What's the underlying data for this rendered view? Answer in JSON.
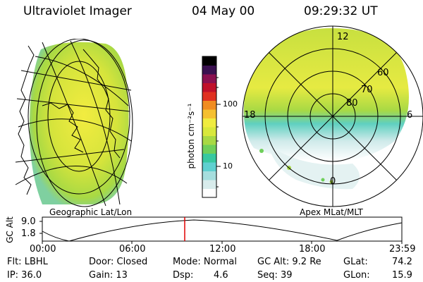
{
  "header": {
    "instrument": "Ultraviolet Imager",
    "date": "04 May 00",
    "time": "09:29:32 UT"
  },
  "geo_panel": {
    "caption": "Geographic Lat/Lon"
  },
  "apex_panel": {
    "caption": "Apex MLat/MLT",
    "mlt_labels": {
      "top": "12",
      "left": "18",
      "right": "6",
      "bottom": "0"
    },
    "lat_labels": [
      "60",
      "70",
      "80"
    ]
  },
  "colorbar": {
    "unit_label": "photon cm⁻²s⁻¹",
    "ticks": [
      "100",
      "10"
    ],
    "colors": [
      "#ffffff",
      "#d8ecec",
      "#a6dede",
      "#5fd0d0",
      "#38c8a0",
      "#6fcf5a",
      "#a8d944",
      "#d8e83c",
      "#f0ec40",
      "#f5c030",
      "#f08c20",
      "#e03020",
      "#c0102a",
      "#8a1050",
      "#3a1050",
      "#000000"
    ]
  },
  "gc_alt": {
    "axis_label": "GC Alt",
    "y_ticks": [
      "9.0",
      "1.8"
    ],
    "x_ticks": [
      "00:00",
      "06:00",
      "12:00",
      "18:00",
      "23:59"
    ],
    "marker_color": "#e00000"
  },
  "info": {
    "flt": "Flt: LBHL",
    "ip": "IP: 36.0",
    "door": "Door: Closed",
    "gain": "Gain: 13",
    "mode": "Mode: Normal",
    "dsp_label": "Dsp:",
    "dsp_value": "4.6",
    "gcalt": "GC Alt: 9.2 Re",
    "seq": "Seq: 39",
    "glat_label": "GLat:",
    "glat_value": "74.2",
    "glon_label": "GLon:",
    "glon_value": "15.9"
  }
}
